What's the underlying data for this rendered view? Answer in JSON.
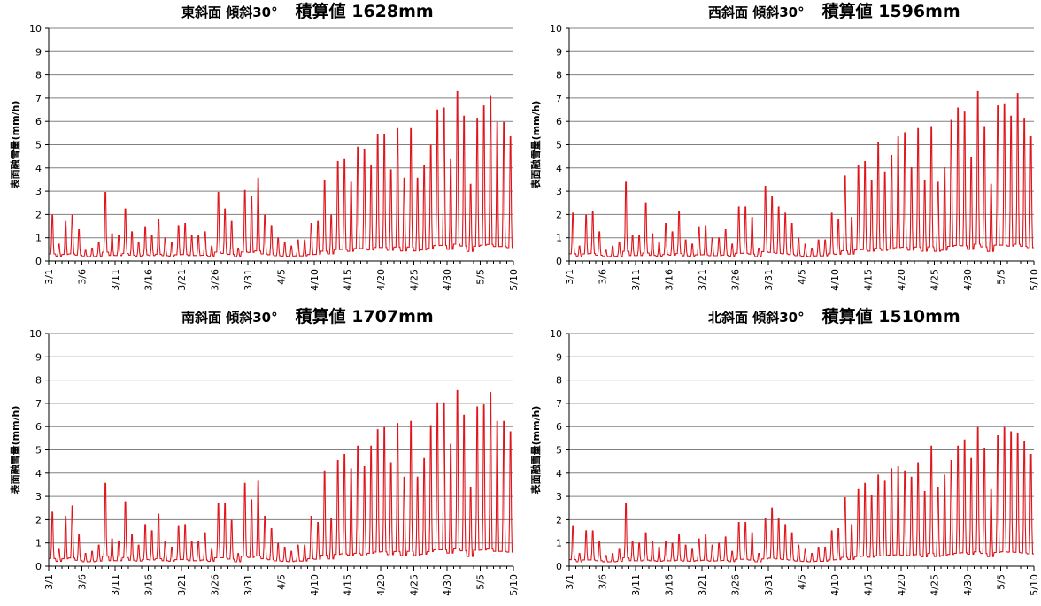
{
  "colors": {
    "series": "#e0141b",
    "grid": "#808080",
    "axis": "#000000"
  },
  "chart_data": [
    {
      "type": "line",
      "title_main": "東斜面 傾斜30°",
      "title_total": "積算値 1628mm",
      "ylabel": "表面融雪量(mm/h)",
      "ylim": [
        0,
        10
      ],
      "yticks": [
        "0",
        "1",
        "2",
        "3",
        "4",
        "5",
        "6",
        "7",
        "8",
        "9",
        "10"
      ],
      "xlim_days": [
        0,
        70
      ],
      "xtick_labels": [
        "3/1",
        "3/6",
        "3/11",
        "3/16",
        "3/21",
        "3/26",
        "3/31",
        "4/5",
        "4/10",
        "4/15",
        "4/20",
        "4/25",
        "4/30",
        "5/5",
        "5/10"
      ],
      "grid": true,
      "series": [
        {
          "daily_peaks": [
            2.2,
            0.8,
            1.9,
            2.2,
            1.5,
            0.5,
            0.6,
            0.9,
            3.3,
            1.3,
            1.2,
            2.5,
            1.4,
            0.9,
            1.6,
            1.2,
            2.0,
            1.1,
            0.9,
            1.7,
            1.8,
            1.2,
            1.2,
            1.4,
            0.7,
            3.3,
            2.5,
            1.9,
            0.6,
            3.4,
            3.1,
            4.0,
            2.2,
            1.7,
            1.1,
            0.9,
            0.7,
            1.0,
            1.0,
            1.8,
            1.9,
            3.9,
            2.2,
            4.8,
            4.9,
            3.8,
            5.5,
            5.4,
            4.6,
            6.1,
            6.1,
            4.4,
            6.4,
            4.0,
            6.4,
            4.0,
            4.6,
            5.6,
            7.3,
            7.4,
            4.9,
            8.2,
            7.0,
            3.7,
            6.9,
            7.5,
            8.0,
            6.7,
            6.7,
            6.0
          ]
        }
      ]
    },
    {
      "type": "line",
      "title_main": "西斜面 傾斜30°",
      "title_total": "積算値 1596mm",
      "ylabel": "表面融雪量(mm/h)",
      "ylim": [
        0,
        10
      ],
      "yticks": [
        "0",
        "1",
        "2",
        "3",
        "4",
        "5",
        "6",
        "7",
        "8",
        "9",
        "10"
      ],
      "xlim_days": [
        0,
        70
      ],
      "xtick_labels": [
        "3/1",
        "3/6",
        "3/11",
        "3/16",
        "3/21",
        "3/26",
        "3/31",
        "4/5",
        "4/10",
        "4/15",
        "4/20",
        "4/25",
        "4/30",
        "5/5",
        "5/10"
      ],
      "grid": true,
      "series": [
        {
          "daily_peaks": [
            2.3,
            0.7,
            2.2,
            2.4,
            1.4,
            0.5,
            0.7,
            0.9,
            3.8,
            1.2,
            1.2,
            2.8,
            1.3,
            0.9,
            1.8,
            1.4,
            2.4,
            1.0,
            0.8,
            1.6,
            1.7,
            1.1,
            1.1,
            1.5,
            0.8,
            2.6,
            2.6,
            2.1,
            0.6,
            3.6,
            3.1,
            2.6,
            2.3,
            1.8,
            1.1,
            0.8,
            0.6,
            1.0,
            1.0,
            2.3,
            2.0,
            4.1,
            2.1,
            4.6,
            4.8,
            3.9,
            5.7,
            4.3,
            5.1,
            6.0,
            6.2,
            4.5,
            6.4,
            3.9,
            6.5,
            3.8,
            4.5,
            6.8,
            7.4,
            7.2,
            5.0,
            8.2,
            6.5,
            3.7,
            7.5,
            7.6,
            7.0,
            8.1,
            6.9,
            6.0
          ]
        }
      ]
    },
    {
      "type": "line",
      "title_main": "南斜面 傾斜30°",
      "title_total": "積算値 1707mm",
      "ylabel": "表面融雪量(mm/h)",
      "ylim": [
        0,
        10
      ],
      "yticks": [
        "0",
        "1",
        "2",
        "3",
        "4",
        "5",
        "6",
        "7",
        "8",
        "9",
        "10"
      ],
      "xlim_days": [
        0,
        70
      ],
      "xtick_labels": [
        "3/1",
        "3/6",
        "3/11",
        "3/16",
        "3/21",
        "3/26",
        "3/31",
        "4/5",
        "4/10",
        "4/15",
        "4/20",
        "4/25",
        "4/30",
        "5/5",
        "5/10"
      ],
      "grid": true,
      "series": [
        {
          "daily_peaks": [
            2.6,
            0.8,
            2.4,
            2.9,
            1.5,
            0.6,
            0.7,
            1.0,
            4.0,
            1.3,
            1.2,
            3.1,
            1.5,
            1.0,
            2.0,
            1.7,
            2.5,
            1.2,
            0.9,
            1.9,
            2.0,
            1.2,
            1.2,
            1.6,
            0.8,
            3.0,
            3.0,
            2.2,
            0.6,
            4.0,
            3.2,
            4.1,
            2.4,
            1.8,
            1.1,
            0.9,
            0.7,
            1.0,
            1.0,
            2.4,
            2.1,
            4.6,
            2.3,
            5.1,
            5.4,
            4.7,
            5.8,
            4.8,
            5.8,
            6.6,
            6.7,
            5.0,
            6.9,
            4.3,
            7.0,
            4.3,
            5.2,
            6.8,
            7.9,
            7.9,
            5.9,
            8.5,
            7.3,
            3.8,
            7.7,
            7.8,
            8.4,
            7.0,
            7.0,
            6.5
          ]
        }
      ]
    },
    {
      "type": "line",
      "title_main": "北斜面 傾斜30°",
      "title_total": "積算値 1510mm",
      "ylabel": "表面融雪量(mm/h)",
      "ylim": [
        0,
        10
      ],
      "yticks": [
        "0",
        "1",
        "2",
        "3",
        "4",
        "5",
        "6",
        "7",
        "8",
        "9",
        "10"
      ],
      "xlim_days": [
        0,
        70
      ],
      "xtick_labels": [
        "3/1",
        "3/6",
        "3/11",
        "3/16",
        "3/21",
        "3/26",
        "3/31",
        "4/5",
        "4/10",
        "4/15",
        "4/20",
        "4/25",
        "4/30",
        "5/5",
        "5/10"
      ],
      "grid": true,
      "series": [
        {
          "daily_peaks": [
            1.9,
            0.6,
            1.7,
            1.7,
            1.2,
            0.5,
            0.6,
            0.8,
            3.0,
            1.2,
            1.1,
            1.6,
            1.2,
            0.9,
            1.2,
            1.1,
            1.5,
            1.0,
            0.8,
            1.3,
            1.5,
            1.0,
            1.1,
            1.4,
            0.7,
            2.1,
            2.1,
            1.6,
            0.6,
            2.3,
            2.8,
            2.3,
            2.0,
            1.6,
            1.0,
            0.8,
            0.6,
            0.9,
            0.9,
            1.7,
            1.8,
            3.3,
            2.0,
            3.7,
            4.0,
            3.4,
            4.4,
            4.1,
            4.7,
            4.8,
            4.6,
            4.3,
            5.0,
            3.6,
            5.8,
            3.8,
            4.4,
            5.1,
            5.8,
            6.1,
            5.2,
            6.7,
            5.7,
            3.7,
            6.3,
            6.7,
            6.5,
            6.4,
            6.0,
            5.4
          ]
        }
      ]
    }
  ]
}
